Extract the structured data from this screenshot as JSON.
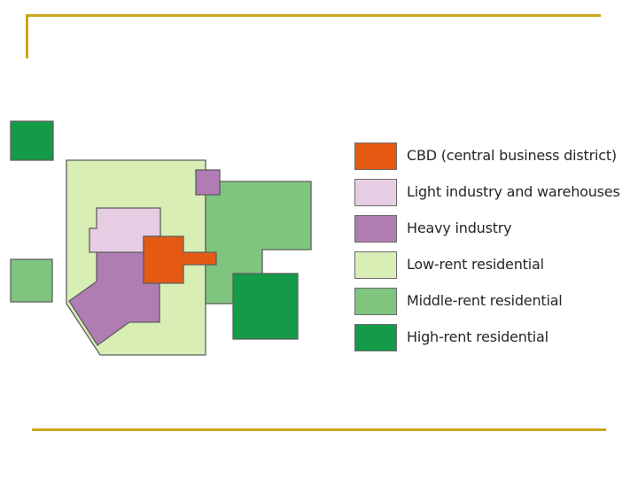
{
  "legend": {
    "items": [
      {
        "label": "CBD (central business district)",
        "color": "#e55a12"
      },
      {
        "label": "Light industry and warehouses",
        "color": "#e7cde3"
      },
      {
        "label": "Heavy industry",
        "color": "#b07cb3"
      },
      {
        "label": "Low-rent residential",
        "color": "#d8eeb4"
      },
      {
        "label": "Middle-rent residential",
        "color": "#7fc57f"
      },
      {
        "label": "High-rent residential",
        "color": "#149b47"
      }
    ]
  },
  "colors": {
    "accent_rule": "#c9a71c",
    "outline": "#5e5e5e"
  }
}
